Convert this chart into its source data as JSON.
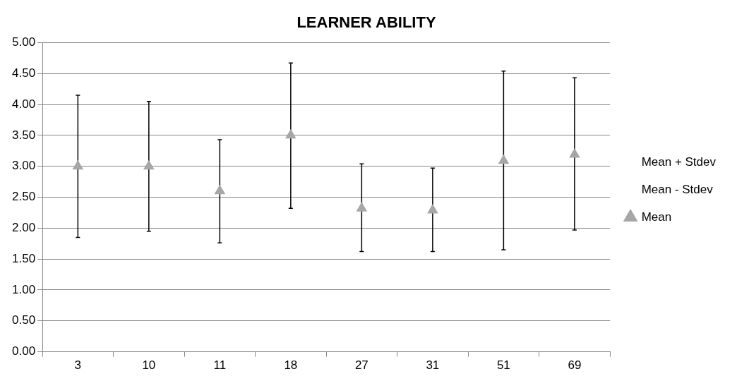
{
  "chart_data": {
    "type": "scatter",
    "title": "LEARNER ABILITY",
    "categories": [
      "3",
      "10",
      "11",
      "18",
      "27",
      "31",
      "51",
      "69"
    ],
    "series": [
      {
        "name": "Mean + Stdev",
        "marker": "none",
        "values": [
          null,
          null,
          null,
          null,
          null,
          null,
          null,
          null
        ]
      },
      {
        "name": "Mean - Stdev",
        "marker": "none",
        "values": [
          null,
          null,
          null,
          null,
          null,
          null,
          null,
          null
        ]
      },
      {
        "name": "Mean",
        "marker": "triangle",
        "color": "#a6a6a6",
        "values": [
          3.0,
          3.0,
          2.6,
          3.5,
          2.32,
          2.29,
          3.09,
          3.19
        ],
        "errors": [
          [
            1.85,
            4.15
          ],
          [
            1.95,
            4.05
          ],
          [
            1.76,
            3.43
          ],
          [
            2.32,
            4.67
          ],
          [
            1.62,
            3.04
          ],
          [
            1.62,
            2.97
          ],
          [
            1.65,
            4.54
          ],
          [
            1.97,
            4.43
          ]
        ]
      }
    ],
    "ylim": [
      0,
      5
    ],
    "yticks": [
      {
        "value": 0,
        "label": "0.00"
      },
      {
        "value": 0.5,
        "label": "0.50"
      },
      {
        "value": 1,
        "label": "1.00"
      },
      {
        "value": 1.5,
        "label": "1.50"
      },
      {
        "value": 2,
        "label": "2.00"
      },
      {
        "value": 2.5,
        "label": "2.50"
      },
      {
        "value": 3,
        "label": "3.00"
      },
      {
        "value": 3.5,
        "label": "3.50"
      },
      {
        "value": 4,
        "label": "4.00"
      },
      {
        "value": 4.5,
        "label": "4.50"
      },
      {
        "value": 5,
        "label": "5.00"
      }
    ],
    "grid": "y",
    "legend": "right"
  }
}
